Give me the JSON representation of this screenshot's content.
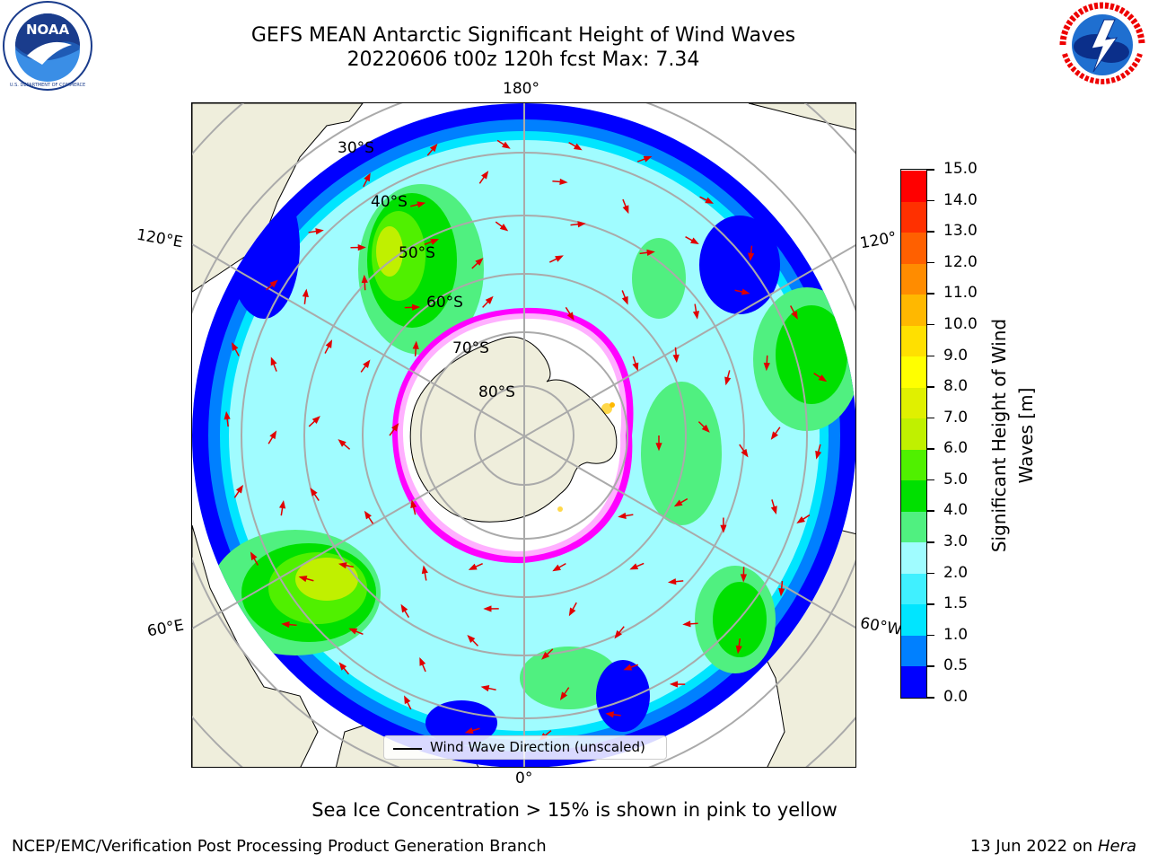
{
  "title_line1": "GEFS MEAN Antarctic Significant Height of Wind Waves",
  "title_line2": "20220606 t00z 120h fcst   Max: 7.34",
  "logos": {
    "left": "NOAA",
    "right": "NATIONAL WEATHER SERVICE"
  },
  "map": {
    "projection": "south-polar-stereographic",
    "longitude_labels": {
      "top": "180°",
      "bottom": "0°",
      "left_upper": "120°E",
      "left_lower": "60°E",
      "right_upper": "120°",
      "right_lower": "60°W"
    },
    "latitude_labels": [
      "30°S",
      "40°S",
      "50°S",
      "60°S",
      "70°S",
      "80°S"
    ],
    "land_color": "#efeedc",
    "ice_edge_colors": [
      "#ff00ff",
      "#ffb0ff",
      "#ffd84a"
    ]
  },
  "legend": {
    "label": "Wind Wave Direction (unscaled)"
  },
  "colorbar": {
    "title": "Significant Height of Wind Waves [m]",
    "ticks": [
      "0.0",
      "0.5",
      "1.0",
      "1.5",
      "2.0",
      "3.0",
      "4.0",
      "5.0",
      "6.0",
      "7.0",
      "8.0",
      "9.0",
      "10.0",
      "11.0",
      "12.0",
      "13.0",
      "14.0",
      "15.0"
    ],
    "colors": [
      "#0000ff",
      "#0080ff",
      "#00e5ff",
      "#40f0ff",
      "#a0fcff",
      "#50f080",
      "#00e000",
      "#50f000",
      "#c0f000",
      "#e0f000",
      "#ffff00",
      "#ffe000",
      "#ffb800",
      "#ff8c00",
      "#ff6000",
      "#ff3000",
      "#ff0000"
    ]
  },
  "footer_note": "Sea Ice Concentration > 15% is shown in pink to yellow",
  "footer_left": "NCEP/EMC/Verification Post Processing Product Generation Branch",
  "footer_date": "13 Jun 2022 on",
  "footer_system": "Hera"
}
